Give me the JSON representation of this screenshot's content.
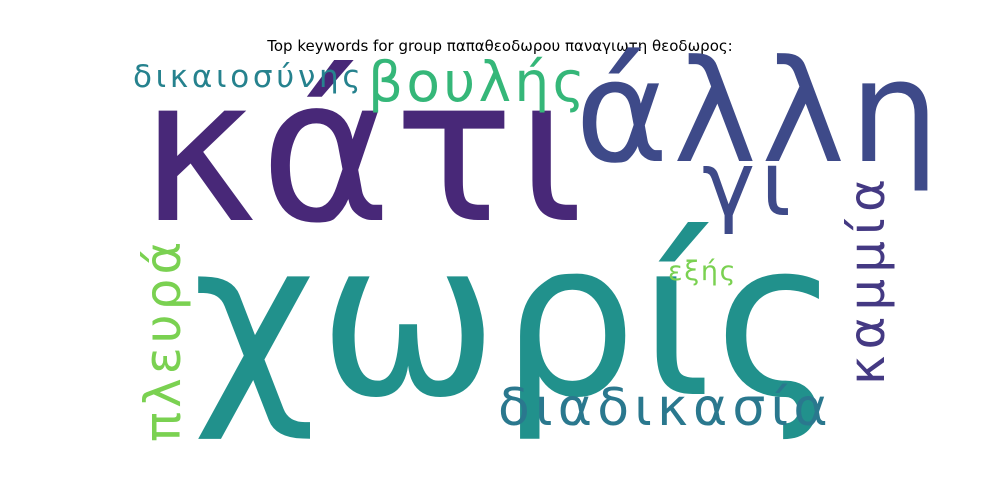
{
  "title": "Top keywords for group παπαθεοδωρου παναγιωτη θεοδωρος:",
  "words": [
    {
      "text": "κάτι",
      "color": "#482878",
      "orientation": "horizontal"
    },
    {
      "text": "χωρίς",
      "color": "#21918c",
      "orientation": "horizontal"
    },
    {
      "text": "άλλη",
      "color": "#3e4a89",
      "orientation": "horizontal"
    },
    {
      "text": "γι",
      "color": "#3e4a89",
      "orientation": "horizontal"
    },
    {
      "text": "βουλής",
      "color": "#35b779",
      "orientation": "horizontal"
    },
    {
      "text": "δικαιοσύνης",
      "color": "#26828e",
      "orientation": "horizontal"
    },
    {
      "text": "διαδικασία",
      "color": "#2a788e",
      "orientation": "horizontal"
    },
    {
      "text": "εξής",
      "color": "#7ad151",
      "orientation": "horizontal"
    },
    {
      "text": "πλευρά",
      "color": "#7ad151",
      "orientation": "vertical"
    },
    {
      "text": "καμμία",
      "color": "#443983",
      "orientation": "vertical"
    }
  ]
}
